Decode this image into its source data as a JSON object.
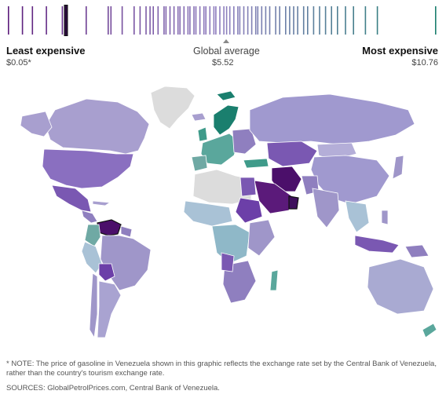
{
  "legend": {
    "least_label": "Least expensive",
    "least_value": "$0.05*",
    "average_label": "Global average",
    "average_value": "$5.52",
    "most_label": "Most expensive",
    "most_value": "$10.76",
    "range": [
      0.05,
      10.76
    ],
    "average": 5.52,
    "highlighted_value": 0.05,
    "colors": {
      "low": "#5b1a7a",
      "mid": "#8f7fbf",
      "high": "#1a7f6e"
    }
  },
  "chart_data": {
    "type": "map",
    "title": "",
    "price_marks": [
      0.05,
      0.4,
      0.65,
      1.0,
      1.4,
      2.0,
      2.55,
      2.62,
      2.9,
      3.2,
      3.35,
      3.5,
      3.6,
      3.68,
      3.8,
      3.95,
      4.0,
      4.1,
      4.2,
      4.3,
      4.35,
      4.45,
      4.55,
      4.6,
      4.7,
      4.75,
      4.85,
      4.95,
      5.0,
      5.1,
      5.2,
      5.25,
      5.35,
      5.45,
      5.52,
      5.6,
      5.7,
      5.8,
      5.85,
      5.95,
      6.05,
      6.15,
      6.25,
      6.3,
      6.4,
      6.5,
      6.6,
      6.75,
      6.85,
      7.0,
      7.1,
      7.2,
      7.3,
      7.45,
      7.55,
      7.7,
      7.85,
      8.0,
      8.15,
      8.3,
      8.5,
      8.7,
      9.0,
      9.3,
      10.76
    ]
  },
  "footer": {
    "note": "* NOTE: The price of gasoline in Venezuela shown in this graphic reflects the exchange rate set by the Central Bank of Venezuela, rather than the country's tourism exchange rate.",
    "sources": "SOURCES: GlobalPetrolPrices.com, Central Bank of Venezuela."
  }
}
